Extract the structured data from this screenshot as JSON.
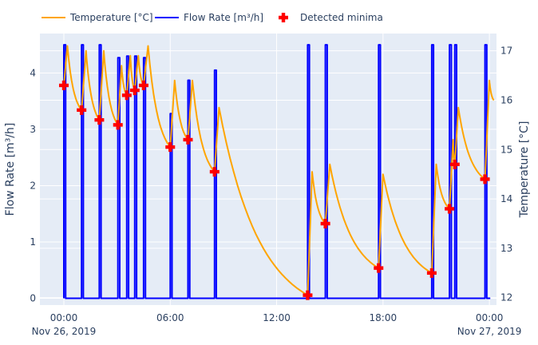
{
  "chart_data": {
    "type": "line",
    "legend": {
      "position": "top-left-horizontal",
      "items": [
        {
          "label": "Temperature [°C]",
          "color": "#FFA500",
          "kind": "line"
        },
        {
          "label": "Flow Rate [m³/h]",
          "color": "#0000FF",
          "kind": "line"
        },
        {
          "label": "Detected minima",
          "color": "#FF0000",
          "kind": "cross-marker"
        }
      ]
    },
    "x_axis": {
      "ticks": [
        {
          "hour": 0,
          "line1": "00:00",
          "line2": "Nov 26, 2019"
        },
        {
          "hour": 6,
          "line1": "06:00",
          "line2": ""
        },
        {
          "hour": 12,
          "line1": "12:00",
          "line2": ""
        },
        {
          "hour": 18,
          "line1": "18:00",
          "line2": ""
        },
        {
          "hour": 24,
          "line1": "00:00",
          "line2": "Nov 27, 2019"
        }
      ],
      "range_hours": [
        -1.35,
        24.4
      ]
    },
    "y_left": {
      "title": "Flow Rate [m³/h]",
      "ticks": [
        0,
        1,
        2,
        3,
        4
      ],
      "range": [
        -0.12,
        4.7
      ]
    },
    "y_right": {
      "title": "Temperature [°C]",
      "ticks": [
        12,
        13,
        14,
        15,
        16,
        17
      ],
      "range": [
        11.85,
        17.35
      ]
    },
    "grid": true,
    "background": "#E5ECF6",
    "flow_pulses": [
      {
        "start": 0.0,
        "end": 0.1,
        "peak": 4.5
      },
      {
        "start": 1.0,
        "end": 1.1,
        "peak": 4.5
      },
      {
        "start": 2.0,
        "end": 2.1,
        "peak": 4.5
      },
      {
        "start": 3.05,
        "end": 3.15,
        "peak": 4.27
      },
      {
        "start": 3.55,
        "end": 3.65,
        "peak": 4.3
      },
      {
        "start": 4.0,
        "end": 4.1,
        "peak": 4.3
      },
      {
        "start": 4.5,
        "end": 4.6,
        "peak": 4.27
      },
      {
        "start": 6.0,
        "end": 6.1,
        "peak": 3.28
      },
      {
        "start": 7.0,
        "end": 7.1,
        "peak": 3.87
      },
      {
        "start": 8.5,
        "end": 8.6,
        "peak": 4.05
      },
      {
        "start": 13.75,
        "end": 13.85,
        "peak": 4.5
      },
      {
        "start": 14.75,
        "end": 14.85,
        "peak": 4.5
      },
      {
        "start": 17.75,
        "end": 17.85,
        "peak": 4.5
      },
      {
        "start": 20.75,
        "end": 20.85,
        "peak": 4.5
      },
      {
        "start": 21.75,
        "end": 21.85,
        "peak": 4.5
      },
      {
        "start": 22.05,
        "end": 22.15,
        "peak": 4.5
      },
      {
        "start": 23.75,
        "end": 23.85,
        "peak": 4.5
      }
    ],
    "temperature_segments": [
      {
        "start": 0.0,
        "start_temp": 16.3,
        "peak_time": 0.2,
        "peak_temp": 17.1,
        "end": 1.0,
        "end_temp": 15.8
      },
      {
        "start": 1.0,
        "start_temp": 15.8,
        "peak_time": 1.25,
        "peak_temp": 17.0,
        "end": 2.0,
        "end_temp": 15.6
      },
      {
        "start": 2.0,
        "start_temp": 15.6,
        "peak_time": 2.25,
        "peak_temp": 17.0,
        "end": 3.05,
        "end_temp": 15.5
      },
      {
        "start": 3.05,
        "start_temp": 15.5,
        "peak_time": 3.25,
        "peak_temp": 16.7,
        "end": 3.55,
        "end_temp": 16.1
      },
      {
        "start": 3.55,
        "start_temp": 16.1,
        "peak_time": 3.75,
        "peak_temp": 16.9,
        "end": 4.0,
        "end_temp": 16.2
      },
      {
        "start": 4.0,
        "start_temp": 16.2,
        "peak_time": 4.2,
        "peak_temp": 16.9,
        "end": 4.5,
        "end_temp": 16.3
      },
      {
        "start": 4.5,
        "start_temp": 16.3,
        "peak_time": 4.75,
        "peak_temp": 17.1,
        "end": 6.0,
        "end_temp": 15.05
      },
      {
        "start": 6.0,
        "start_temp": 15.05,
        "peak_time": 6.25,
        "peak_temp": 16.4,
        "end": 7.0,
        "end_temp": 15.2
      },
      {
        "start": 7.0,
        "start_temp": 15.2,
        "peak_time": 7.25,
        "peak_temp": 16.4,
        "end": 8.5,
        "end_temp": 14.55
      },
      {
        "start": 8.5,
        "start_temp": 14.55,
        "peak_time": 8.75,
        "peak_temp": 15.85,
        "end": 13.75,
        "end_temp": 12.05
      },
      {
        "start": 13.75,
        "start_temp": 12.05,
        "peak_time": 14.0,
        "peak_temp": 14.55,
        "end": 14.75,
        "end_temp": 13.5
      },
      {
        "start": 14.75,
        "start_temp": 13.5,
        "peak_time": 15.0,
        "peak_temp": 14.7,
        "end": 17.75,
        "end_temp": 12.6
      },
      {
        "start": 17.75,
        "start_temp": 12.6,
        "peak_time": 18.0,
        "peak_temp": 14.5,
        "end": 20.75,
        "end_temp": 12.5
      },
      {
        "start": 20.75,
        "start_temp": 12.5,
        "peak_time": 21.0,
        "peak_temp": 14.7,
        "end": 21.75,
        "end_temp": 13.8
      },
      {
        "start": 21.75,
        "start_temp": 13.8,
        "peak_time": 21.95,
        "peak_temp": 15.2,
        "end": 22.05,
        "end_temp": 14.7
      },
      {
        "start": 22.05,
        "start_temp": 14.7,
        "peak_time": 22.25,
        "peak_temp": 15.85,
        "end": 23.75,
        "end_temp": 14.4
      },
      {
        "start": 23.75,
        "start_temp": 14.4,
        "peak_time": 24.0,
        "peak_temp": 16.4,
        "end": 24.0,
        "end_temp": 16.4
      },
      {
        "start": 24.0,
        "start_temp": 16.4,
        "peak_time": 24.0,
        "peak_temp": 16.4,
        "end": 24.25,
        "end_temp": 16.0
      }
    ],
    "detected_minima": [
      {
        "hour": 0.0,
        "temp": 16.3
      },
      {
        "hour": 1.0,
        "temp": 15.8
      },
      {
        "hour": 2.0,
        "temp": 15.6
      },
      {
        "hour": 3.05,
        "temp": 15.5
      },
      {
        "hour": 3.55,
        "temp": 16.1
      },
      {
        "hour": 4.0,
        "temp": 16.2
      },
      {
        "hour": 4.5,
        "temp": 16.3
      },
      {
        "hour": 6.0,
        "temp": 15.05
      },
      {
        "hour": 7.0,
        "temp": 15.2
      },
      {
        "hour": 8.5,
        "temp": 14.55
      },
      {
        "hour": 13.75,
        "temp": 12.05
      },
      {
        "hour": 14.75,
        "temp": 13.5
      },
      {
        "hour": 17.75,
        "temp": 12.6
      },
      {
        "hour": 20.75,
        "temp": 12.5
      },
      {
        "hour": 21.75,
        "temp": 13.8
      },
      {
        "hour": 22.05,
        "temp": 14.7
      },
      {
        "hour": 23.75,
        "temp": 14.4
      }
    ]
  }
}
